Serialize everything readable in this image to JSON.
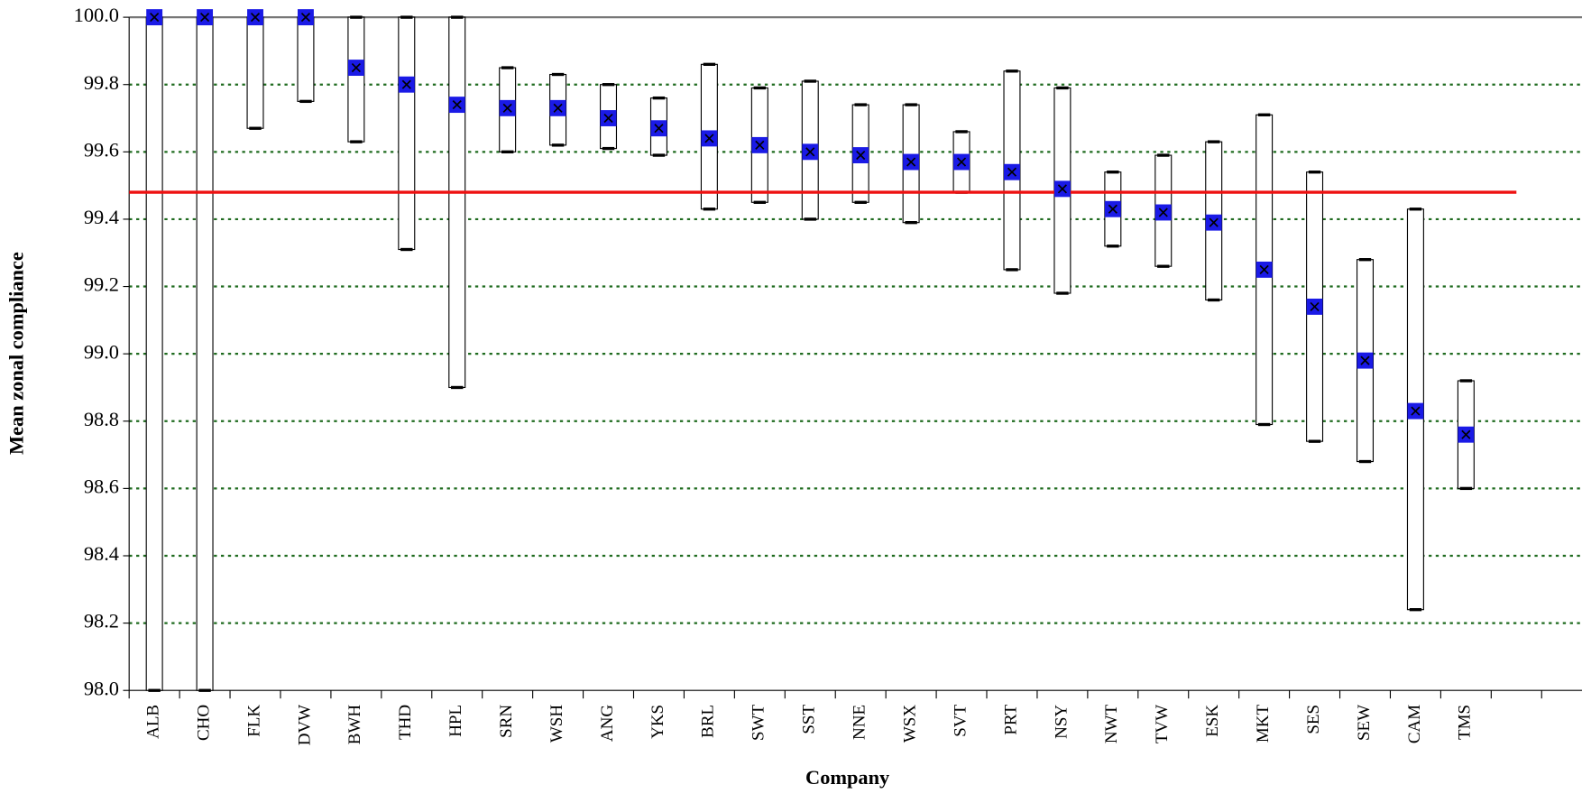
{
  "chart_data": {
    "type": "range",
    "x_label": "Company",
    "y_label": "Mean zonal compliance",
    "categories": [
      "ALB",
      "CHO",
      "FLK",
      "DVW",
      "BWH",
      "THD",
      "HPL",
      "SRN",
      "WSH",
      "ANG",
      "YKS",
      "BRL",
      "SWT",
      "SST",
      "NNE",
      "WSX",
      "SVT",
      "PRT",
      "NSY",
      "NWT",
      "TVW",
      "ESK",
      "MKT",
      "SES",
      "SEW",
      "CAM",
      "TMS"
    ],
    "values": [
      100,
      100,
      100,
      100,
      99.85,
      99.8,
      99.74,
      99.73,
      99.73,
      99.7,
      99.67,
      99.64,
      99.62,
      99.6,
      99.59,
      99.57,
      99.57,
      99.54,
      99.49,
      99.43,
      99.42,
      99.39,
      99.25,
      99.14,
      98.98,
      98.83,
      98.76
    ],
    "low": [
      98.0,
      98.0,
      99.67,
      99.75,
      99.63,
      99.31,
      98.9,
      99.6,
      99.62,
      99.61,
      99.59,
      99.43,
      99.45,
      99.4,
      99.45,
      99.39,
      99.48,
      99.25,
      99.18,
      99.32,
      99.26,
      99.16,
      98.79,
      98.74,
      98.68,
      98.24,
      98.6
    ],
    "high": [
      100,
      100,
      100,
      100,
      100,
      100,
      100,
      99.85,
      99.83,
      99.8,
      99.76,
      99.86,
      99.79,
      99.81,
      99.74,
      99.74,
      99.66,
      99.84,
      99.79,
      99.54,
      99.59,
      99.63,
      99.71,
      99.54,
      99.28,
      99.43,
      98.92
    ],
    "reference": 99.48,
    "reference_color": "#ee1111",
    "marker_color": "#1a1ae6",
    "grid_color": "#1f6b1f",
    "ylim": [
      98.0,
      100.0
    ],
    "yticks": [
      {
        "value": 98.0,
        "label": "98.0"
      },
      {
        "value": 98.2,
        "label": "98.2"
      },
      {
        "value": 98.4,
        "label": "98.4"
      },
      {
        "value": 98.6,
        "label": "98.6"
      },
      {
        "value": 98.8,
        "label": "98.8"
      },
      {
        "value": 99.0,
        "label": "99.0"
      },
      {
        "value": 99.2,
        "label": "99.2"
      },
      {
        "value": 99.4,
        "label": "99.4"
      },
      {
        "value": 99.6,
        "label": "99.6"
      },
      {
        "value": 99.8,
        "label": "99.8"
      },
      {
        "value": 100.0,
        "label": "100.0"
      }
    ],
    "grid": true
  }
}
